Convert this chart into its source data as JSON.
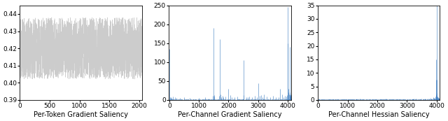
{
  "panel1": {
    "title": "Per-Token Gradient Saliency",
    "xlim": [
      0,
      2048
    ],
    "ylim": [
      0.39,
      0.445
    ],
    "yticks": [
      0.39,
      0.4,
      0.41,
      0.42,
      0.43,
      0.44
    ],
    "xticks": [
      0,
      500,
      1000,
      1500,
      2000
    ],
    "color": "#cccccc",
    "n_tokens": 2048,
    "mean": 0.42,
    "amplitude": 0.018,
    "seed": 42
  },
  "panel2": {
    "title": "Per-Channel Gradient Saliency",
    "xlim": [
      -20,
      4115
    ],
    "ylim": [
      0,
      250
    ],
    "yticks": [
      0,
      50,
      100,
      150,
      200,
      250
    ],
    "xticks": [
      0,
      1000,
      2000,
      3000,
      4000
    ],
    "color": "#3a7abf",
    "n_channels": 4096,
    "spike_positions": [
      10,
      25,
      50,
      80,
      130,
      180,
      250,
      350,
      500,
      700,
      1000,
      1200,
      1480,
      1500,
      1510,
      1520,
      1680,
      1700,
      1720,
      1760,
      1800,
      1820,
      1900,
      2000,
      2050,
      2100,
      2200,
      2300,
      2500,
      2520,
      2600,
      2650,
      2700,
      2800,
      2900,
      2950,
      3000,
      3050,
      3100,
      3150,
      3200,
      3300,
      3400,
      3500,
      3600,
      3700,
      3750,
      3800,
      3850,
      3900,
      3950,
      3980,
      4000,
      4010,
      4020,
      4030,
      4050,
      4060,
      4070,
      4080,
      4085,
      4088,
      4090,
      4092,
      4094
    ],
    "spike_heights": [
      135,
      7,
      8,
      6,
      9,
      7,
      5,
      6,
      8,
      5,
      6,
      7,
      10,
      190,
      12,
      9,
      10,
      160,
      14,
      8,
      10,
      7,
      9,
      30,
      12,
      8,
      7,
      9,
      105,
      12,
      8,
      7,
      9,
      8,
      10,
      8,
      45,
      10,
      12,
      8,
      15,
      9,
      8,
      10,
      8,
      7,
      30,
      15,
      8,
      10,
      9,
      12,
      150,
      245,
      30,
      20,
      15,
      10,
      140,
      20,
      12,
      15,
      10,
      8,
      7
    ]
  },
  "panel3": {
    "title": "Per-Channel Hessian Saliency",
    "xlim": [
      -20,
      4115
    ],
    "ylim": [
      0,
      35
    ],
    "yticks": [
      0,
      5,
      10,
      15,
      20,
      25,
      30,
      35
    ],
    "xticks": [
      0,
      1000,
      2000,
      3000,
      4000
    ],
    "color": "#3a7abf",
    "n_channels": 4096,
    "spike_positions": [
      100,
      300,
      500,
      700,
      900,
      1100,
      1300,
      1500,
      1700,
      1900,
      2100,
      2300,
      2500,
      2700,
      2900,
      3100,
      3300,
      3500,
      3600,
      3700,
      3750,
      3800,
      3850,
      3880,
      3900,
      3920,
      3940,
      3960,
      3975,
      3985,
      3990,
      3995,
      4000,
      4005,
      4010,
      4020,
      4030,
      4040,
      4050,
      4060,
      4070,
      4075,
      4080,
      4085,
      4090,
      4093
    ],
    "spike_heights": [
      0.3,
      0.2,
      0.3,
      0.2,
      0.3,
      0.2,
      0.3,
      0.2,
      0.3,
      0.2,
      0.3,
      0.2,
      0.3,
      0.2,
      0.3,
      0.2,
      0.4,
      0.5,
      0.4,
      0.6,
      0.5,
      0.7,
      0.6,
      0.8,
      1.0,
      0.8,
      0.7,
      1.2,
      1.5,
      2.0,
      15.0,
      7.5,
      35.0,
      7.5,
      2.5,
      1.5,
      1.2,
      1.0,
      0.9,
      0.8,
      0.7,
      0.6,
      0.5,
      0.4,
      0.3,
      0.2
    ]
  },
  "fig_width": 6.4,
  "fig_height": 1.73,
  "dpi": 100,
  "background": "#ffffff",
  "label_fontsize": 7.0
}
